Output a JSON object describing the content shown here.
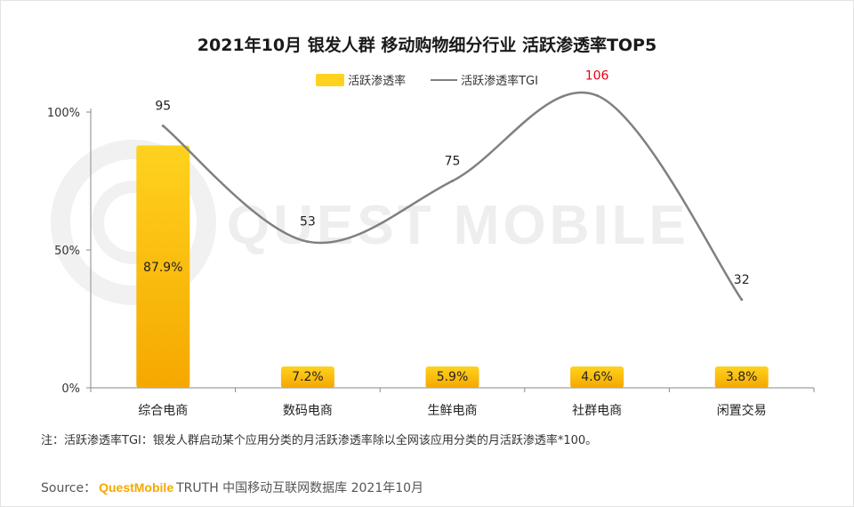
{
  "colors": {
    "bar_top": "#ffd21f",
    "bar_bottom": "#f5a800",
    "line": "#808080",
    "highlight": "#e60012",
    "axis": "#8a8a8a",
    "brand": "#f5a800"
  },
  "legend": {
    "bar_label": "活跃渗透率",
    "line_label": "活跃渗透率TGI"
  },
  "watermark": "QUEST MOBILE",
  "note": "注：活跃渗透率TGI：银发人群启动某个应用分类的月活跃渗透率除以全网该应用分类的月活跃渗透率*100。",
  "source": {
    "prefix": "Source：",
    "brand": "QuestMobile",
    "rest": "TRUTH 中国移动互联网数据库 2021年10月"
  },
  "chart_data": {
    "type": "bar",
    "title": "2021年10月 银发人群 移动购物细分行业 活跃渗透率TOP5",
    "categories": [
      "综合电商",
      "数码电商",
      "生鲜电商",
      "社群电商",
      "闲置交易"
    ],
    "series": [
      {
        "name": "活跃渗透率",
        "type": "bar",
        "values": [
          87.9,
          7.2,
          5.9,
          4.6,
          3.8
        ],
        "labels": [
          "87.9%",
          "7.2%",
          "5.9%",
          "4.6%",
          "3.8%"
        ]
      },
      {
        "name": "活跃渗透率TGI",
        "type": "line",
        "smooth": true,
        "values": [
          95,
          53,
          75,
          106,
          32
        ],
        "labels": [
          "95",
          "53",
          "75",
          "106",
          "32"
        ],
        "highlight_index": 3
      }
    ],
    "ylim": [
      0,
      100
    ],
    "yticks": [
      0,
      50,
      100
    ],
    "ytick_labels": [
      "0%",
      "50%",
      "100%"
    ],
    "xlabel": "",
    "ylabel": ""
  }
}
